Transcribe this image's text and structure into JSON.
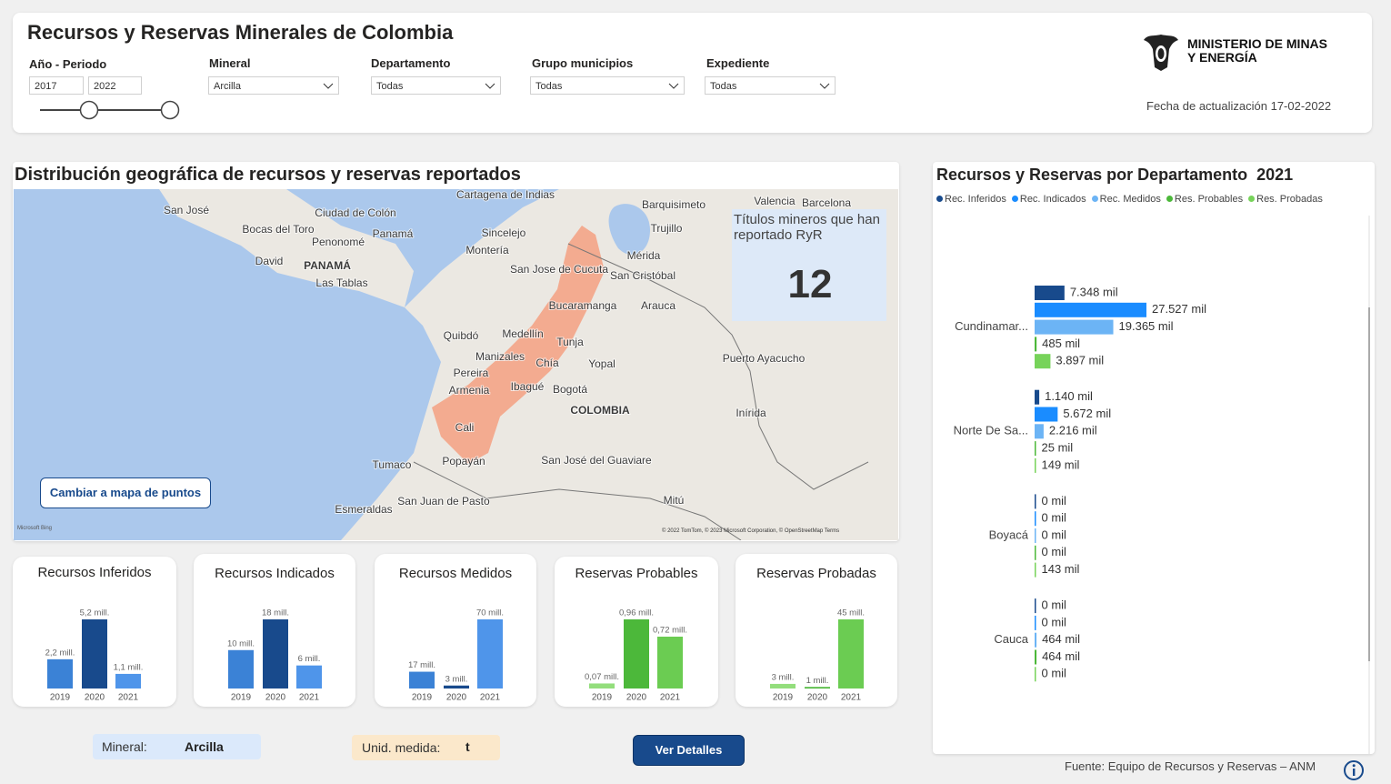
{
  "header": {
    "title": "Recursos y Reservas Minerales de Colombia",
    "ministry": [
      "MINISTERIO DE MINAS",
      "Y ENERGÍA"
    ],
    "updated": "Fecha de actualización 17-02-2022"
  },
  "filters": [
    {
      "label": "Año - Periodo",
      "values": [
        "2017",
        "2022"
      ]
    },
    {
      "label": "Mineral",
      "value": "Arcilla"
    },
    {
      "label": "Departamento",
      "value": "Todas"
    },
    {
      "label": "Grupo municipios",
      "value": "Todas"
    },
    {
      "label": "Expediente",
      "value": "Todas"
    }
  ],
  "map": {
    "title": "Distribución geográfica de recursos y reservas reportados",
    "card_label": "Títulos mineros que han reportado RyR",
    "card_value": 12,
    "button": "Cambiar a mapa de puntos",
    "bing": "Microsoft Bing",
    "attribution": "© 2022 TomTom, © 2023 Microsoft Corporation, © OpenStreetMap  Terms",
    "places": [
      "San José",
      "Ciudad de Colón",
      "Bocas del Toro",
      "Panamá",
      "Penonomé",
      "David",
      "PANAMÁ",
      "Las Tablas",
      "Cartagena de Indias",
      "Sincelejo",
      "Montería",
      "Barquisimeto",
      "Valencia",
      "Barcelona",
      "Trujillo",
      "San Jose de Cucuta",
      "Mérida",
      "San Cristóbal",
      "Bucaramanga",
      "Arauca",
      "Quibdó",
      "Medellín",
      "Tunja",
      "Manizales",
      "Chía",
      "Yopal",
      "Puerto Ayacucho",
      "Pereira",
      "Armenia",
      "Ibagué",
      "Bogotá",
      "COLOMBIA",
      "Inírida",
      "Cali",
      "Tumaco",
      "Popayán",
      "San José del Guaviare",
      "Esmeraldas",
      "San Juan de Pasto",
      "Mitú"
    ]
  },
  "kpis": [
    {
      "title": "Recursos Inferidos",
      "categories": [
        "2019",
        "2020",
        "2021"
      ],
      "values": [
        2.2,
        5.2,
        1.1
      ],
      "value_labels": [
        "2,2 mill.",
        "5,2 mill.",
        "1,1 mill."
      ],
      "colors": [
        "#3b82d6",
        "#184a8c",
        "#4f95ea"
      ]
    },
    {
      "title": "Recursos Indicados",
      "categories": [
        "2019",
        "2020",
        "2021"
      ],
      "values": [
        10,
        18,
        6
      ],
      "value_labels": [
        "10 mill.",
        "18 mill.",
        "6 mill."
      ],
      "colors": [
        "#3b82d6",
        "#184a8c",
        "#4f95ea"
      ]
    },
    {
      "title": "Recursos Medidos",
      "categories": [
        "2019",
        "2020",
        "2021"
      ],
      "values": [
        17,
        3,
        70
      ],
      "value_labels": [
        "17 mill.",
        "3 mill.",
        "70 mill."
      ],
      "colors": [
        "#3b82d6",
        "#184a8c",
        "#4f95ea"
      ]
    },
    {
      "title": "Reservas Probables",
      "categories": [
        "2019",
        "2020",
        "2021"
      ],
      "values": [
        0.07,
        0.96,
        0.72
      ],
      "value_labels": [
        "0,07 mill.",
        "0,96 mill.",
        "0,72 mill."
      ],
      "colors": [
        "#93de7c",
        "#4cb83a",
        "#6bcc52"
      ]
    },
    {
      "title": "Reservas Probadas",
      "categories": [
        "2019",
        "2020",
        "2021"
      ],
      "values": [
        3,
        1,
        45
      ],
      "value_labels": [
        "3 mill.",
        "1 mill.",
        "45 mill."
      ],
      "colors": [
        "#93de7c",
        "#4cb83a",
        "#6bcc52"
      ]
    }
  ],
  "dept_chart": {
    "title": "Recursos y Reservas por Departamento  2021",
    "categories": [
      "Cundinamar...",
      "Norte De Sa...",
      "Boyacá",
      "Cauca"
    ],
    "series": [
      {
        "name": "Rec. Inferidos",
        "color": "#184a8c",
        "values": [
          7348,
          1140,
          0,
          0
        ],
        "value_labels": [
          "7.348 mil",
          "1.140 mil",
          "0 mil",
          "0 mil"
        ]
      },
      {
        "name": "Rec. Indicados",
        "color": "#1a8cff",
        "values": [
          27527,
          5672,
          0,
          0
        ],
        "value_labels": [
          "27.527 mil",
          "5.672 mil",
          "0 mil",
          "0 mil"
        ]
      },
      {
        "name": "Rec. Medidos",
        "color": "#6cb4f5",
        "values": [
          19365,
          2216,
          0,
          464
        ],
        "value_labels": [
          "19.365 mil",
          "2.216 mil",
          "0 mil",
          "464 mil"
        ]
      },
      {
        "name": "Res. Probables",
        "color": "#4cb83a",
        "values": [
          485,
          25,
          0,
          464
        ],
        "value_labels": [
          "485 mil",
          "25 mil",
          "0 mil",
          "464 mil"
        ]
      },
      {
        "name": "Res. Probadas",
        "color": "#77d35a",
        "values": [
          3897,
          149,
          143,
          0
        ],
        "value_labels": [
          "3.897 mil",
          "149 mil",
          "143 mil",
          "0 mil"
        ]
      }
    ]
  },
  "footer": {
    "mineral_label": "Mineral:",
    "mineral_value": "Arcilla",
    "unit_label": "Unid. medida:",
    "unit_value": "t",
    "details_button": "Ver Detalles",
    "source": "Fuente: Equipo de Recursos y Reservas – ANM"
  }
}
